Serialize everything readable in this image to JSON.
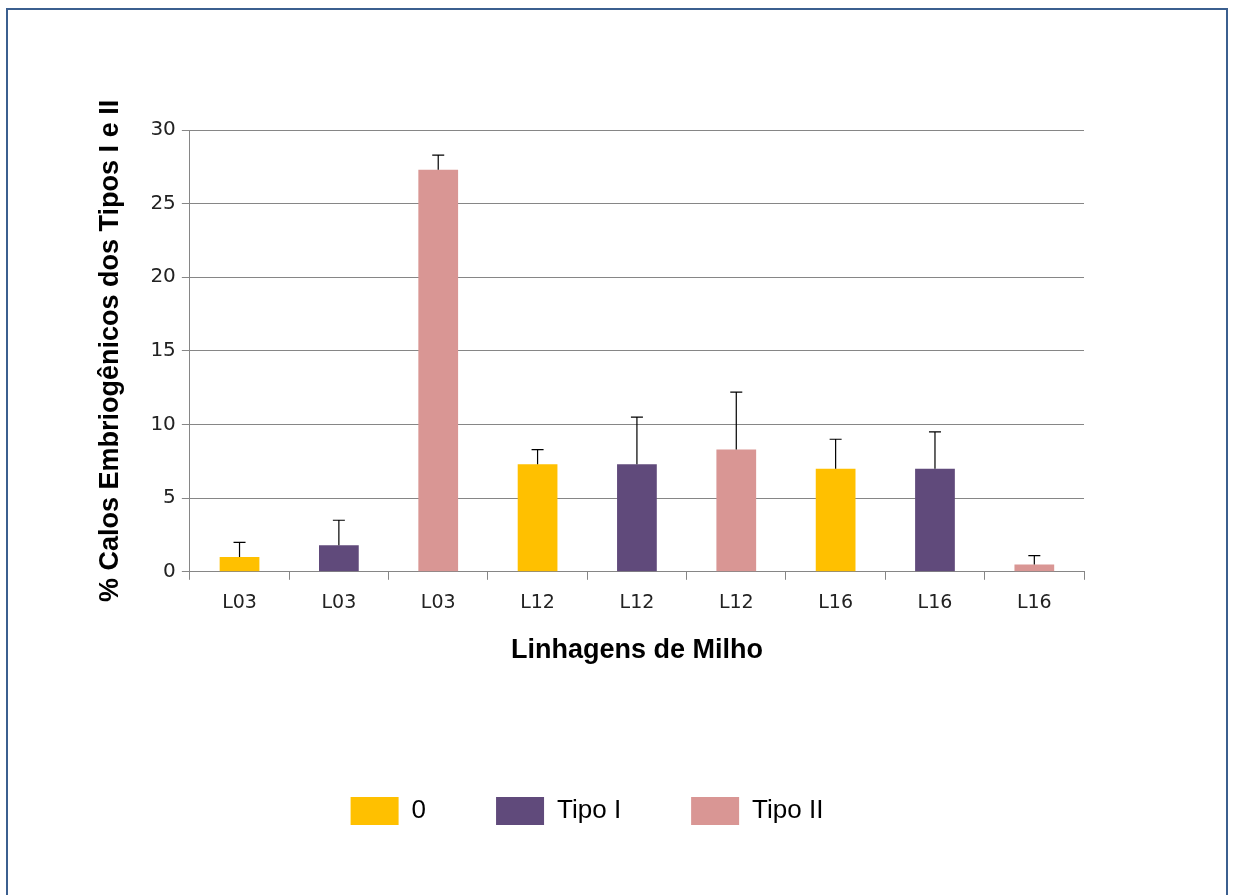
{
  "chart_data": {
    "type": "bar",
    "xlabel": "Linhagens de Milho",
    "ylabel": "% Calos Embriogênicos dos Tipos I e II",
    "categories": [
      "L03",
      "L03",
      "L03",
      "L12",
      "L12",
      "L12",
      "L16",
      "L16",
      "L16"
    ],
    "series": [
      {
        "name": "0",
        "color": "#ffc000",
        "values": [
          1.0,
          null,
          null,
          7.3,
          null,
          null,
          7.0,
          null,
          null
        ],
        "errors": [
          [
            1.0,
            2.0
          ],
          null,
          null,
          [
            7.3,
            8.3
          ],
          null,
          null,
          [
            7.0,
            9.0
          ],
          null,
          null
        ]
      },
      {
        "name": "Tipo I",
        "color": "#604a7b",
        "values": [
          null,
          1.8,
          null,
          null,
          7.3,
          null,
          null,
          7.0,
          null
        ],
        "errors": [
          null,
          [
            1.8,
            3.5
          ],
          null,
          null,
          [
            7.3,
            10.5
          ],
          null,
          null,
          [
            7.0,
            9.5
          ],
          null
        ]
      },
      {
        "name": "Tipo II",
        "color": "#d99694",
        "values": [
          null,
          null,
          27.3,
          null,
          null,
          8.3,
          null,
          null,
          0.5
        ],
        "errors": [
          null,
          null,
          [
            27.3,
            28.3
          ],
          null,
          null,
          [
            8.3,
            12.2
          ],
          null,
          null,
          [
            0.5,
            1.1
          ]
        ]
      }
    ],
    "ylim": [
      0,
      30
    ],
    "yticks": [
      0,
      5,
      10,
      15,
      20,
      25,
      30
    ],
    "grid": "y",
    "legend": "bottom"
  }
}
